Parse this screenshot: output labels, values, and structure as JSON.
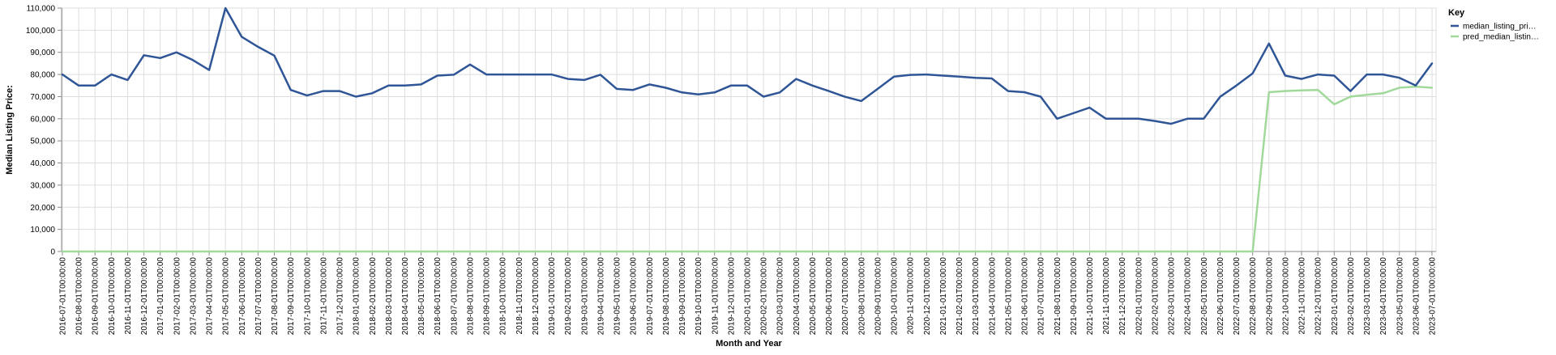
{
  "chart_data": {
    "type": "line",
    "xlabel": "Month and Year",
    "ylabel": "Median Listing Price:",
    "ylim": [
      0,
      110000
    ],
    "y_ticks": [
      0,
      10000,
      20000,
      30000,
      40000,
      50000,
      60000,
      70000,
      80000,
      90000,
      100000,
      110000
    ],
    "y_tick_labels": [
      "0",
      "10,000",
      "20,000",
      "30,000",
      "40,000",
      "50,000",
      "60,000",
      "70,000",
      "80,000",
      "90,000",
      "100,000",
      "110,000"
    ],
    "grid": true,
    "legend": {
      "title": "Key",
      "position": "top-right",
      "entries": [
        "median_listing_pri…",
        "pred_median_listin…"
      ]
    },
    "x": [
      "2016-07-01T00:00:00",
      "2016-08-01T00:00:00",
      "2016-09-01T00:00:00",
      "2016-10-01T00:00:00",
      "2016-11-01T00:00:00",
      "2016-12-01T00:00:00",
      "2017-01-01T00:00:00",
      "2017-02-01T00:00:00",
      "2017-03-01T00:00:00",
      "2017-04-01T00:00:00",
      "2017-05-01T00:00:00",
      "2017-06-01T00:00:00",
      "2017-07-01T00:00:00",
      "2017-08-01T00:00:00",
      "2017-09-01T00:00:00",
      "2017-10-01T00:00:00",
      "2017-11-01T00:00:00",
      "2017-12-01T00:00:00",
      "2018-01-01T00:00:00",
      "2018-02-01T00:00:00",
      "2018-03-01T00:00:00",
      "2018-04-01T00:00:00",
      "2018-05-01T00:00:00",
      "2018-06-01T00:00:00",
      "2018-07-01T00:00:00",
      "2018-08-01T00:00:00",
      "2018-09-01T00:00:00",
      "2018-10-01T00:00:00",
      "2018-11-01T00:00:00",
      "2018-12-01T00:00:00",
      "2019-01-01T00:00:00",
      "2019-02-01T00:00:00",
      "2019-03-01T00:00:00",
      "2019-04-01T00:00:00",
      "2019-05-01T00:00:00",
      "2019-06-01T00:00:00",
      "2019-07-01T00:00:00",
      "2019-08-01T00:00:00",
      "2019-09-01T00:00:00",
      "2019-10-01T00:00:00",
      "2019-11-01T00:00:00",
      "2019-12-01T00:00:00",
      "2020-01-01T00:00:00",
      "2020-02-01T00:00:00",
      "2020-03-01T00:00:00",
      "2020-04-01T00:00:00",
      "2020-05-01T00:00:00",
      "2020-06-01T00:00:00",
      "2020-07-01T00:00:00",
      "2020-08-01T00:00:00",
      "2020-09-01T00:00:00",
      "2020-10-01T00:00:00",
      "2020-11-01T00:00:00",
      "2020-12-01T00:00:00",
      "2021-01-01T00:00:00",
      "2021-02-01T00:00:00",
      "2021-03-01T00:00:00",
      "2021-04-01T00:00:00",
      "2021-05-01T00:00:00",
      "2021-06-01T00:00:00",
      "2021-07-01T00:00:00",
      "2021-08-01T00:00:00",
      "2021-09-01T00:00:00",
      "2021-10-01T00:00:00",
      "2021-11-01T00:00:00",
      "2021-12-01T00:00:00",
      "2022-01-01T00:00:00",
      "2022-02-01T00:00:00",
      "2022-03-01T00:00:00",
      "2022-04-01T00:00:00",
      "2022-05-01T00:00:00",
      "2022-06-01T00:00:00",
      "2022-07-01T00:00:00",
      "2022-08-01T00:00:00",
      "2022-09-01T00:00:00",
      "2022-10-01T00:00:00",
      "2022-11-01T00:00:00",
      "2022-12-01T00:00:00",
      "2023-01-01T00:00:00",
      "2023-02-01T00:00:00",
      "2023-03-01T00:00:00",
      "2023-04-01T00:00:00",
      "2023-05-01T00:00:00",
      "2023-06-01T00:00:00",
      "2023-07-01T00:00:00"
    ],
    "series": [
      {
        "name": "median_listing_pri…",
        "color": "#2f5597",
        "values": [
          80000,
          75000,
          75000,
          80000,
          77500,
          88700,
          87400,
          90000,
          86500,
          82000,
          110000,
          97000,
          92500,
          88500,
          73000,
          70500,
          72500,
          72500,
          70000,
          71500,
          75000,
          75000,
          75500,
          79500,
          79900,
          84500,
          80000,
          80000,
          80000,
          80000,
          80000,
          78000,
          77500,
          79900,
          73500,
          73000,
          75500,
          74000,
          71900,
          71000,
          71900,
          75000,
          75000,
          70000,
          71900,
          78000,
          75000,
          72500,
          69900,
          68000,
          73500,
          79000,
          79800,
          80000,
          79500,
          79000,
          78500,
          78200,
          72500,
          72000,
          70000,
          60000,
          62500,
          65000,
          60000,
          60000,
          60000,
          59000,
          57700,
          60000,
          60000,
          69900,
          75000,
          80500,
          94000,
          79500,
          78000,
          80000,
          79500,
          72500,
          80000,
          80000,
          78500,
          75000,
          85000
        ]
      },
      {
        "name": "pred_median_listin…",
        "color": "#a1d99b",
        "values": [
          0,
          0,
          0,
          0,
          0,
          0,
          0,
          0,
          0,
          0,
          0,
          0,
          0,
          0,
          0,
          0,
          0,
          0,
          0,
          0,
          0,
          0,
          0,
          0,
          0,
          0,
          0,
          0,
          0,
          0,
          0,
          0,
          0,
          0,
          0,
          0,
          0,
          0,
          0,
          0,
          0,
          0,
          0,
          0,
          0,
          0,
          0,
          0,
          0,
          0,
          0,
          0,
          0,
          0,
          0,
          0,
          0,
          0,
          0,
          0,
          0,
          0,
          0,
          0,
          0,
          0,
          0,
          0,
          0,
          0,
          0,
          0,
          0,
          0,
          72000,
          72500,
          72800,
          73000,
          66500,
          70000,
          70800,
          71500,
          74000,
          74500,
          74000
        ]
      }
    ]
  }
}
